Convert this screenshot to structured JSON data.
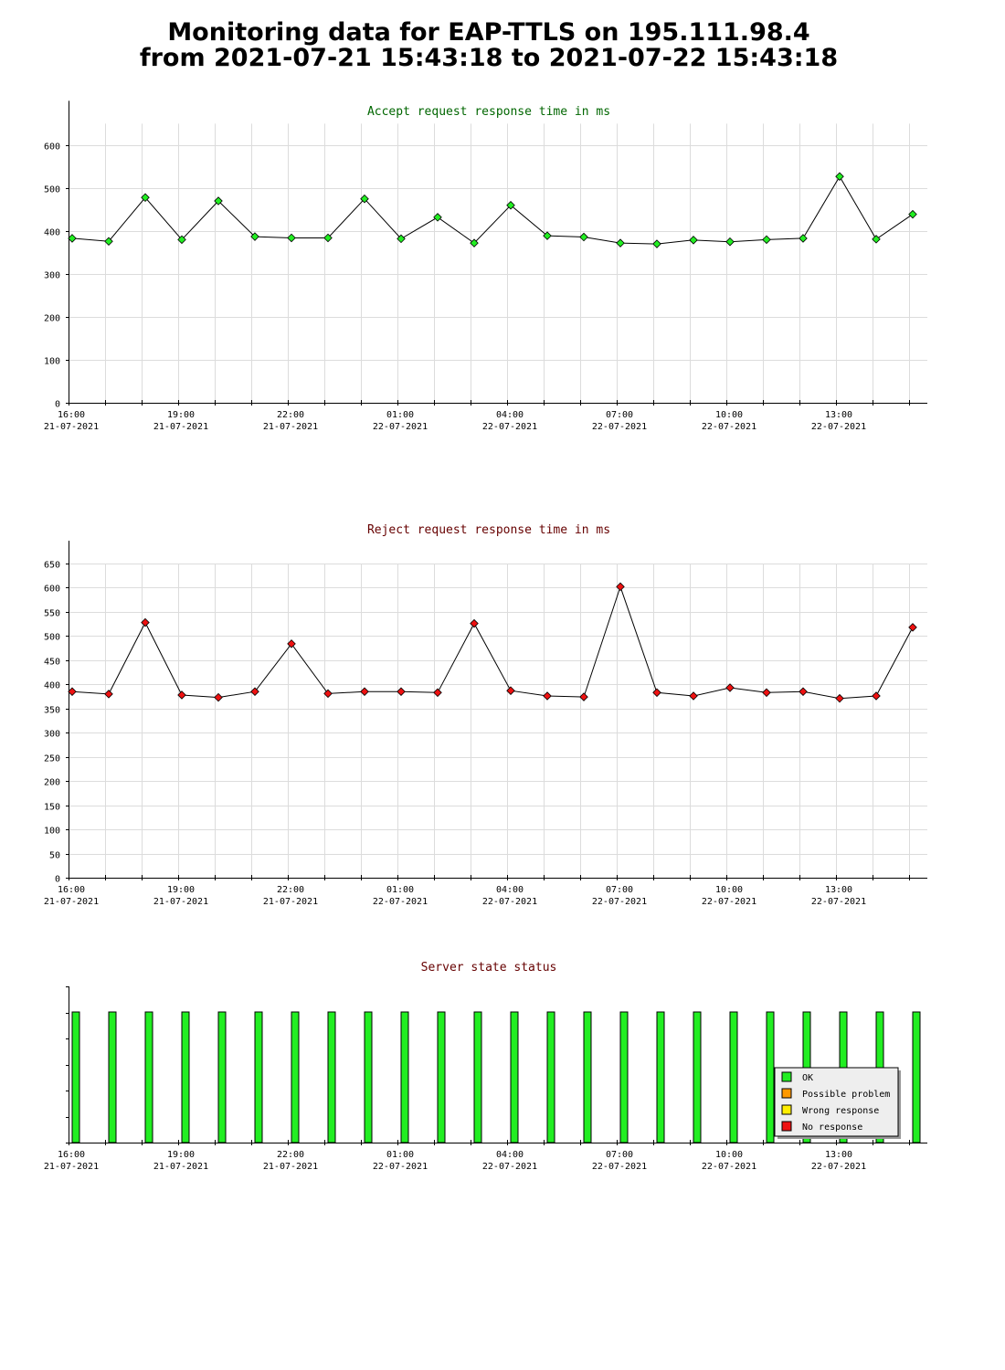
{
  "page": {
    "title_line1": "Monitoring data for EAP-TTLS on 195.111.98.4",
    "title_line2": "from 2021-07-21 15:43:18 to 2021-07-22 15:43:18"
  },
  "colors": {
    "accept": "#22ee22",
    "reject": "#ee1111",
    "accept_title": "#006600",
    "reject_title": "#660000",
    "grid": "#dcdcdc",
    "ok": "#22ee22",
    "possible_problem": "#ff9900",
    "wrong_response": "#ffee00",
    "no_response": "#ee1111"
  },
  "x_axis": {
    "ticks": [
      {
        "time": "16:00",
        "date": "21-07-2021"
      },
      {
        "time": "19:00",
        "date": "21-07-2021"
      },
      {
        "time": "22:00",
        "date": "21-07-2021"
      },
      {
        "time": "01:00",
        "date": "22-07-2021"
      },
      {
        "time": "04:00",
        "date": "22-07-2021"
      },
      {
        "time": "07:00",
        "date": "22-07-2021"
      },
      {
        "time": "10:00",
        "date": "22-07-2021"
      },
      {
        "time": "13:00",
        "date": "22-07-2021"
      }
    ]
  },
  "chart_data": [
    {
      "type": "line",
      "title": "Accept request response time in ms",
      "xlabel": "",
      "ylabel": "",
      "ylim": [
        0,
        650
      ],
      "yticks": [
        0,
        100,
        200,
        300,
        400,
        500,
        600
      ],
      "grid": true,
      "x": [
        "2021-07-21 15:43",
        "2021-07-21 16:43",
        "2021-07-21 17:43",
        "2021-07-21 18:43",
        "2021-07-21 19:43",
        "2021-07-21 20:43",
        "2021-07-21 21:43",
        "2021-07-21 22:43",
        "2021-07-21 23:43",
        "2021-07-22 00:43",
        "2021-07-22 01:43",
        "2021-07-22 02:43",
        "2021-07-22 03:43",
        "2021-07-22 04:43",
        "2021-07-22 05:43",
        "2021-07-22 06:43",
        "2021-07-22 07:43",
        "2021-07-22 08:43",
        "2021-07-22 09:43",
        "2021-07-22 10:43",
        "2021-07-22 11:43",
        "2021-07-22 12:43",
        "2021-07-22 13:43",
        "2021-07-22 14:43"
      ],
      "values": [
        383,
        376,
        478,
        380,
        470,
        387,
        384,
        384,
        475,
        382,
        432,
        372,
        460,
        389,
        386,
        372,
        370,
        379,
        375,
        380,
        383,
        527,
        381,
        439
      ]
    },
    {
      "type": "line",
      "title": "Reject request response time in ms",
      "xlabel": "",
      "ylabel": "",
      "ylim": [
        0,
        650
      ],
      "yticks": [
        0,
        50,
        100,
        150,
        200,
        250,
        300,
        350,
        400,
        450,
        500,
        550,
        600,
        650
      ],
      "grid": true,
      "x": [
        "2021-07-21 15:43",
        "2021-07-21 16:43",
        "2021-07-21 17:43",
        "2021-07-21 18:43",
        "2021-07-21 19:43",
        "2021-07-21 20:43",
        "2021-07-21 21:43",
        "2021-07-21 22:43",
        "2021-07-21 23:43",
        "2021-07-22 00:43",
        "2021-07-22 01:43",
        "2021-07-22 02:43",
        "2021-07-22 03:43",
        "2021-07-22 04:43",
        "2021-07-22 05:43",
        "2021-07-22 06:43",
        "2021-07-22 07:43",
        "2021-07-22 08:43",
        "2021-07-22 09:43",
        "2021-07-22 10:43",
        "2021-07-22 11:43",
        "2021-07-22 12:43",
        "2021-07-22 13:43",
        "2021-07-22 14:43"
      ],
      "values": [
        385,
        380,
        528,
        378,
        373,
        385,
        484,
        381,
        385,
        385,
        383,
        526,
        387,
        376,
        374,
        602,
        383,
        376,
        393,
        383,
        385,
        371,
        376,
        518
      ]
    },
    {
      "type": "bar",
      "title": "Server state status",
      "xlabel": "",
      "ylabel": "",
      "x": [
        "2021-07-21 15:43",
        "2021-07-21 16:43",
        "2021-07-21 17:43",
        "2021-07-21 18:43",
        "2021-07-21 19:43",
        "2021-07-21 20:43",
        "2021-07-21 21:43",
        "2021-07-21 22:43",
        "2021-07-21 23:43",
        "2021-07-22 00:43",
        "2021-07-22 01:43",
        "2021-07-22 02:43",
        "2021-07-22 03:43",
        "2021-07-22 04:43",
        "2021-07-22 05:43",
        "2021-07-22 06:43",
        "2021-07-22 07:43",
        "2021-07-22 08:43",
        "2021-07-22 09:43",
        "2021-07-22 10:43",
        "2021-07-22 11:43",
        "2021-07-22 12:43",
        "2021-07-22 13:43",
        "2021-07-22 14:43"
      ],
      "states": [
        "OK",
        "OK",
        "OK",
        "OK",
        "OK",
        "OK",
        "OK",
        "OK",
        "OK",
        "OK",
        "OK",
        "OK",
        "OK",
        "OK",
        "OK",
        "OK",
        "OK",
        "OK",
        "OK",
        "OK",
        "OK",
        "OK",
        "OK",
        "OK"
      ],
      "legend": [
        "OK",
        "Possible problem",
        "Wrong response",
        "No response"
      ],
      "legend_position": "bottom-right"
    }
  ]
}
